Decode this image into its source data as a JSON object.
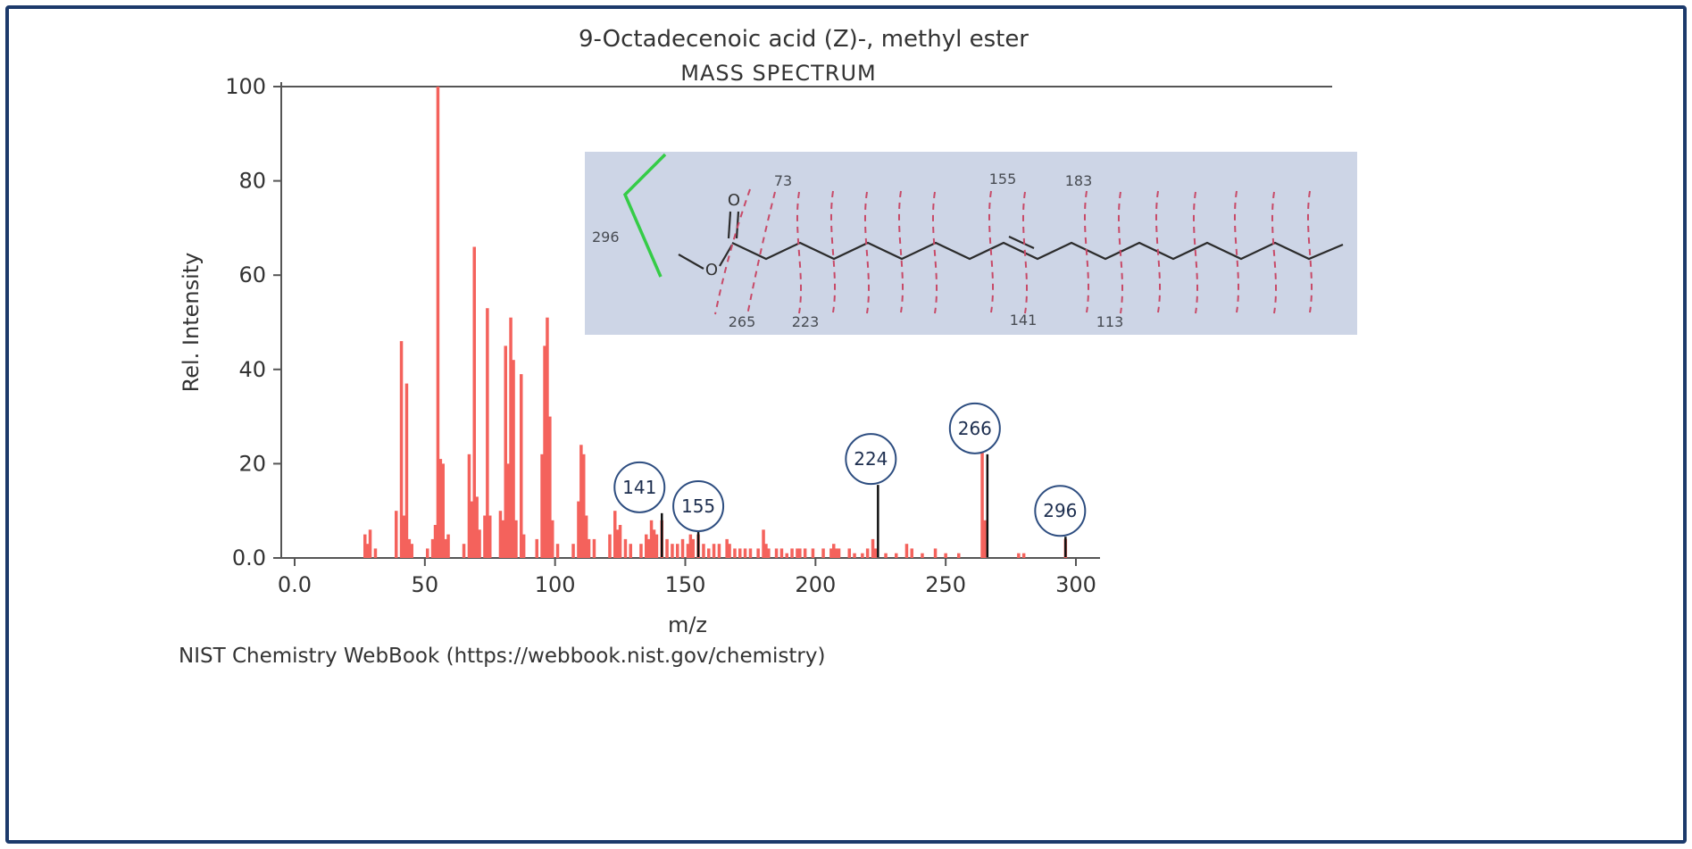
{
  "chart_data": {
    "type": "bar",
    "title": "9-Octadecenoic acid (Z)-, methyl ester",
    "subtitle": "MASS SPECTRUM",
    "xlabel": "m/z",
    "ylabel": "Rel. Intensity",
    "xlim": [
      0,
      300
    ],
    "ylim": [
      0,
      100
    ],
    "grid": false,
    "xticks": {
      "values": [
        0,
        50,
        100,
        150,
        200,
        250,
        300
      ],
      "labels": [
        "0.0",
        "50",
        "100",
        "150",
        "200",
        "250",
        "300"
      ]
    },
    "yticks": {
      "values": [
        0,
        20,
        40,
        60,
        80,
        100
      ],
      "labels": [
        "0.0",
        "20",
        "40",
        "60",
        "80",
        "100"
      ]
    },
    "peaks": [
      [
        27,
        5
      ],
      [
        28,
        3
      ],
      [
        29,
        6
      ],
      [
        31,
        2
      ],
      [
        39,
        10
      ],
      [
        41,
        46
      ],
      [
        42,
        9
      ],
      [
        43,
        37
      ],
      [
        44,
        4
      ],
      [
        45,
        3
      ],
      [
        51,
        2
      ],
      [
        53,
        4
      ],
      [
        54,
        7
      ],
      [
        55,
        100
      ],
      [
        56,
        21
      ],
      [
        57,
        20
      ],
      [
        58,
        4
      ],
      [
        59,
        5
      ],
      [
        65,
        3
      ],
      [
        67,
        22
      ],
      [
        68,
        12
      ],
      [
        69,
        66
      ],
      [
        70,
        13
      ],
      [
        71,
        6
      ],
      [
        73,
        9
      ],
      [
        74,
        53
      ],
      [
        75,
        9
      ],
      [
        79,
        10
      ],
      [
        80,
        8
      ],
      [
        81,
        45
      ],
      [
        82,
        20
      ],
      [
        83,
        51
      ],
      [
        84,
        42
      ],
      [
        85,
        8
      ],
      [
        87,
        39
      ],
      [
        88,
        5
      ],
      [
        93,
        4
      ],
      [
        95,
        22
      ],
      [
        96,
        45
      ],
      [
        97,
        51
      ],
      [
        98,
        30
      ],
      [
        99,
        8
      ],
      [
        101,
        3
      ],
      [
        107,
        3
      ],
      [
        109,
        12
      ],
      [
        110,
        24
      ],
      [
        111,
        22
      ],
      [
        112,
        9
      ],
      [
        113,
        4
      ],
      [
        115,
        4
      ],
      [
        121,
        5
      ],
      [
        123,
        10
      ],
      [
        124,
        6
      ],
      [
        125,
        7
      ],
      [
        127,
        4
      ],
      [
        129,
        3
      ],
      [
        133,
        3
      ],
      [
        135,
        5
      ],
      [
        136,
        4
      ],
      [
        137,
        8
      ],
      [
        138,
        6
      ],
      [
        139,
        5
      ],
      [
        141,
        8
      ],
      [
        143,
        4
      ],
      [
        145,
        3
      ],
      [
        147,
        3
      ],
      [
        149,
        4
      ],
      [
        151,
        3
      ],
      [
        152,
        5
      ],
      [
        153,
        4
      ],
      [
        155,
        5
      ],
      [
        157,
        3
      ],
      [
        159,
        2
      ],
      [
        161,
        3
      ],
      [
        163,
        3
      ],
      [
        166,
        4
      ],
      [
        167,
        3
      ],
      [
        169,
        2
      ],
      [
        171,
        2
      ],
      [
        173,
        2
      ],
      [
        175,
        2
      ],
      [
        178,
        2
      ],
      [
        180,
        6
      ],
      [
        181,
        3
      ],
      [
        182,
        2
      ],
      [
        185,
        2
      ],
      [
        187,
        2
      ],
      [
        189,
        1
      ],
      [
        191,
        2
      ],
      [
        193,
        2
      ],
      [
        194,
        2
      ],
      [
        196,
        2
      ],
      [
        199,
        2
      ],
      [
        203,
        2
      ],
      [
        206,
        2
      ],
      [
        207,
        3
      ],
      [
        208,
        2
      ],
      [
        209,
        2
      ],
      [
        213,
        2
      ],
      [
        215,
        1
      ],
      [
        218,
        1
      ],
      [
        220,
        2
      ],
      [
        222,
        4
      ],
      [
        223,
        2
      ],
      [
        227,
        1
      ],
      [
        231,
        1
      ],
      [
        235,
        3
      ],
      [
        237,
        2
      ],
      [
        241,
        1
      ],
      [
        246,
        2
      ],
      [
        250,
        1
      ],
      [
        255,
        1
      ],
      [
        264,
        26
      ],
      [
        265,
        8
      ],
      [
        278,
        1
      ],
      [
        280,
        1
      ],
      [
        296,
        4
      ]
    ],
    "annotated_peaks": [
      {
        "mz": 141,
        "label": "141",
        "intensity": 9.5,
        "dx": -25
      },
      {
        "mz": 155,
        "label": "155",
        "intensity": 5.5,
        "dx": 0
      },
      {
        "mz": 224,
        "label": "224",
        "intensity": 15.5,
        "dx": -8
      },
      {
        "mz": 266,
        "label": "266",
        "intensity": 22,
        "dx": -14
      },
      {
        "mz": 296,
        "label": "296",
        "intensity": 4.5,
        "dx": -6
      }
    ],
    "colors": {
      "bar": "#f4625c",
      "annotation_line": "#111111",
      "circle_stroke": "#2d4d80",
      "axis": "#555555",
      "frame": "#1c3a6b",
      "inset_bg": "#cdd5e6",
      "bracket": "#35cc47",
      "fragment_dash": "#c84a68",
      "atom_o": "#e03a2f",
      "molecule": "#2b2b2b"
    }
  },
  "inset": {
    "left_label": "296",
    "top_labels": [
      "73",
      "155",
      "183"
    ],
    "bottom_labels": [
      "265",
      "223",
      "141",
      "113"
    ],
    "atoms": {
      "ester_o": "O",
      "carbonyl_o": "O"
    }
  },
  "footer": {
    "credit": "NIST Chemistry WebBook (https://webbook.nist.gov/chemistry)"
  }
}
